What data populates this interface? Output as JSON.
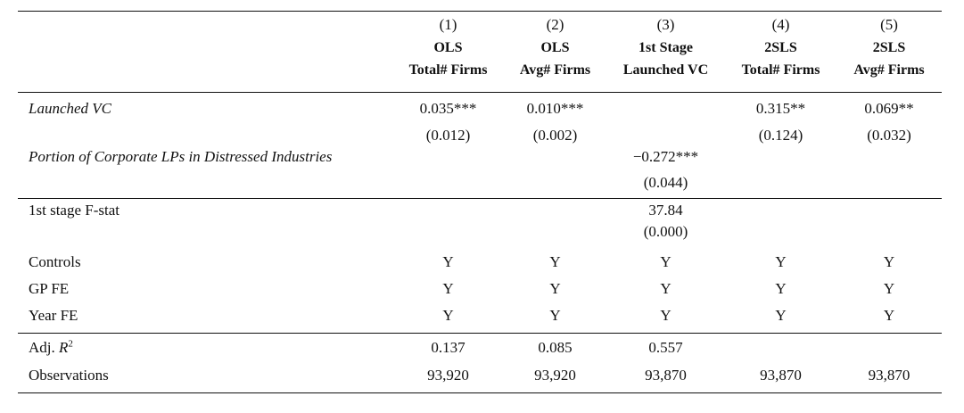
{
  "columns": [
    {
      "num": "(1)",
      "method": "OLS",
      "dep": "Total# Firms"
    },
    {
      "num": "(2)",
      "method": "OLS",
      "dep": "Avg# Firms"
    },
    {
      "num": "(3)",
      "method": "1st Stage",
      "dep": "Launched VC"
    },
    {
      "num": "(4)",
      "method": "2SLS",
      "dep": "Total# Firms"
    },
    {
      "num": "(5)",
      "method": "2SLS",
      "dep": "Avg# Firms"
    }
  ],
  "vars": {
    "launched": {
      "label": "Launched VC",
      "coef": [
        "0.035***",
        "0.010***",
        "",
        "0.315**",
        "0.069**"
      ],
      "se": [
        "(0.012)",
        "(0.002)",
        "",
        "(0.124)",
        "(0.032)"
      ]
    },
    "portion": {
      "label": "Portion of Corporate LPs in Distressed Industries",
      "coef": [
        "",
        "",
        "−0.272***",
        "",
        ""
      ],
      "se": [
        "",
        "",
        "(0.044)",
        "",
        ""
      ]
    }
  },
  "fstat": {
    "label": "1st stage F-stat",
    "value": [
      "",
      "",
      "37.84",
      "",
      ""
    ],
    "p": [
      "",
      "",
      "(0.000)",
      "",
      ""
    ]
  },
  "fe": [
    {
      "label": "Controls",
      "values": [
        "Y",
        "Y",
        "Y",
        "Y",
        "Y"
      ]
    },
    {
      "label": "GP FE",
      "values": [
        "Y",
        "Y",
        "Y",
        "Y",
        "Y"
      ]
    },
    {
      "label": "Year FE",
      "values": [
        "Y",
        "Y",
        "Y",
        "Y",
        "Y"
      ]
    }
  ],
  "stats": {
    "adjr2": {
      "label": "Adj. R",
      "sup": "2",
      "values": [
        "0.137",
        "0.085",
        "0.557",
        "",
        ""
      ]
    },
    "obs": {
      "label": "Observations",
      "values": [
        "93,920",
        "93,920",
        "93,870",
        "93,870",
        "93,870"
      ]
    }
  }
}
